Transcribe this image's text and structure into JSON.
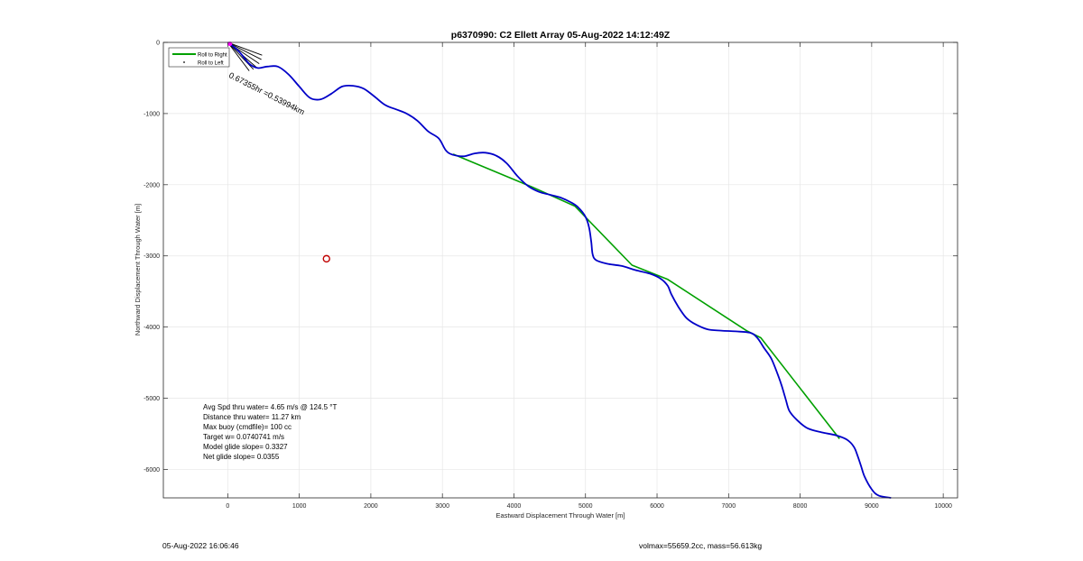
{
  "colors": {
    "axis": "#262626",
    "grid": "#e6e6e6",
    "track": "#0000c8",
    "roll_right": "#00a000",
    "roll_left": "#000000",
    "start_marker": "#ff00ff",
    "target_marker": "#c00000"
  },
  "chart_data": {
    "type": "line",
    "title": "p6370990: C2 Ellett Array 05-Aug-2022 14:12:49Z",
    "xlabel": "Eastward Displacement Through Water [m]",
    "ylabel": "Northward Displacement Through Water [m]",
    "xlim": [
      -900,
      10200
    ],
    "ylim": [
      -6400,
      0
    ],
    "x_ticks": [
      0,
      1000,
      2000,
      3000,
      4000,
      5000,
      6000,
      7000,
      8000,
      9000,
      10000
    ],
    "x_tick_labels": [
      "0",
      "1000",
      "2000",
      "3000",
      "4000",
      "5000",
      "6000",
      "7000",
      "8000",
      "9000",
      "10000"
    ],
    "y_ticks": [
      0,
      -1000,
      -2000,
      -3000,
      -4000,
      -5000,
      -6000
    ],
    "y_tick_labels": [
      "0",
      "-1000",
      "-2000",
      "-3000",
      "-4000",
      "-5000",
      "-6000"
    ],
    "grid": true,
    "legend_position": "top-left",
    "legend": [
      {
        "label": "Roll to Right",
        "style": "line"
      },
      {
        "label": "Roll to Left",
        "style": "dot"
      }
    ],
    "series": [
      {
        "name": "track",
        "x": [
          0,
          150,
          300,
          420,
          550,
          700,
          850,
          1000,
          1150,
          1300,
          1450,
          1600,
          1750,
          1900,
          2050,
          2200,
          2350,
          2500,
          2650,
          2800,
          2950,
          3050,
          3150,
          3300,
          3450,
          3600,
          3750,
          3900,
          4050,
          4200,
          4350,
          4500,
          4650,
          4800,
          4900,
          5000,
          5050,
          5080,
          5100,
          5150,
          5300,
          5500,
          5700,
          5900,
          6050,
          6150,
          6200,
          6300,
          6400,
          6500,
          6700,
          6900,
          7100,
          7300,
          7400,
          7500,
          7600,
          7700,
          7750,
          7780,
          7800,
          7850,
          7950,
          8100,
          8300,
          8500,
          8650,
          8750,
          8800,
          8850,
          8900,
          9000,
          9100,
          9270
        ],
        "y": [
          0,
          -120,
          -300,
          -360,
          -340,
          -340,
          -450,
          -620,
          -780,
          -800,
          -720,
          -620,
          -610,
          -650,
          -760,
          -880,
          -940,
          -1000,
          -1100,
          -1250,
          -1350,
          -1520,
          -1580,
          -1600,
          -1560,
          -1550,
          -1590,
          -1700,
          -1880,
          -2020,
          -2100,
          -2140,
          -2180,
          -2250,
          -2320,
          -2450,
          -2600,
          -2800,
          -2980,
          -3060,
          -3110,
          -3140,
          -3200,
          -3250,
          -3320,
          -3420,
          -3540,
          -3720,
          -3860,
          -3940,
          -4030,
          -4050,
          -4060,
          -4080,
          -4150,
          -4300,
          -4450,
          -4700,
          -4850,
          -4950,
          -5020,
          -5180,
          -5300,
          -5420,
          -5480,
          -5520,
          -5580,
          -5680,
          -5800,
          -5950,
          -6100,
          -6280,
          -6370,
          -6400
        ]
      },
      {
        "name": "",
        "x": [
          3150,
          4250,
          4850,
          5650,
          6150,
          7250,
          7450,
          8550
        ],
        "y": [
          -1570,
          -2030,
          -2300,
          -3130,
          -3330,
          -4050,
          -4150,
          -5570
        ]
      }
    ],
    "start_marker": {
      "x": 30,
      "y": -20
    },
    "target_marker": {
      "x": 1380,
      "y": -3040
    },
    "heading_lines": [
      {
        "x1": 0,
        "y1": 0,
        "x2": 480,
        "y2": -180
      },
      {
        "x1": 0,
        "y1": 0,
        "x2": 470,
        "y2": -240
      },
      {
        "x1": 0,
        "y1": 0,
        "x2": 440,
        "y2": -300
      },
      {
        "x1": 0,
        "y1": 0,
        "x2": 400,
        "y2": -350
      },
      {
        "x1": 0,
        "y1": 0,
        "x2": 360,
        "y2": -380
      },
      {
        "x1": 0,
        "y1": 0,
        "x2": 300,
        "y2": -400
      }
    ],
    "annotation": {
      "text": "0.67355hr =0.53994km",
      "x": 1050,
      "y": -1020,
      "angle": 27
    },
    "stats": [
      "Avg Spd thru water=  4.65 m/s @ 124.5 °T",
      "Distance thru water= 11.27 km",
      "Max buoy (cmdfile)= 100 cc",
      "Target w= 0.0740741 m/s",
      "Model glide slope= 0.3327",
      "Net glide slope= 0.0355"
    ]
  },
  "footer": {
    "left": "05-Aug-2022 16:06:46",
    "right": "volmax=55659.2cc, mass=56.613kg"
  }
}
